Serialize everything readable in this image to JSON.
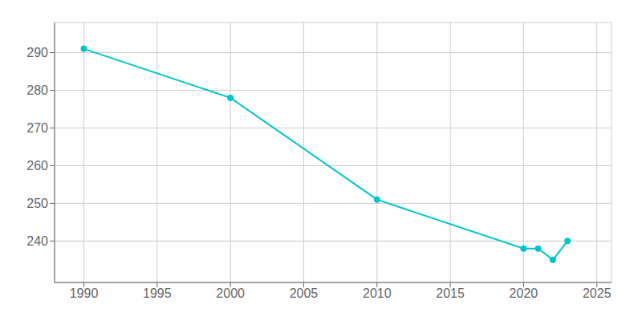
{
  "chart_data": {
    "type": "line",
    "x": [
      1990,
      2000,
      2010,
      2020,
      2021,
      2022,
      2023
    ],
    "values": [
      291,
      278,
      251,
      238,
      238,
      235,
      240
    ],
    "color": "#00C5C8",
    "marker": "circle",
    "xlim": [
      1988,
      2026
    ],
    "ylim": [
      229,
      298
    ],
    "xticks": [
      1990,
      1995,
      2000,
      2005,
      2010,
      2015,
      2020,
      2025
    ],
    "yticks": [
      240,
      250,
      260,
      270,
      280,
      290
    ],
    "grid": true
  }
}
